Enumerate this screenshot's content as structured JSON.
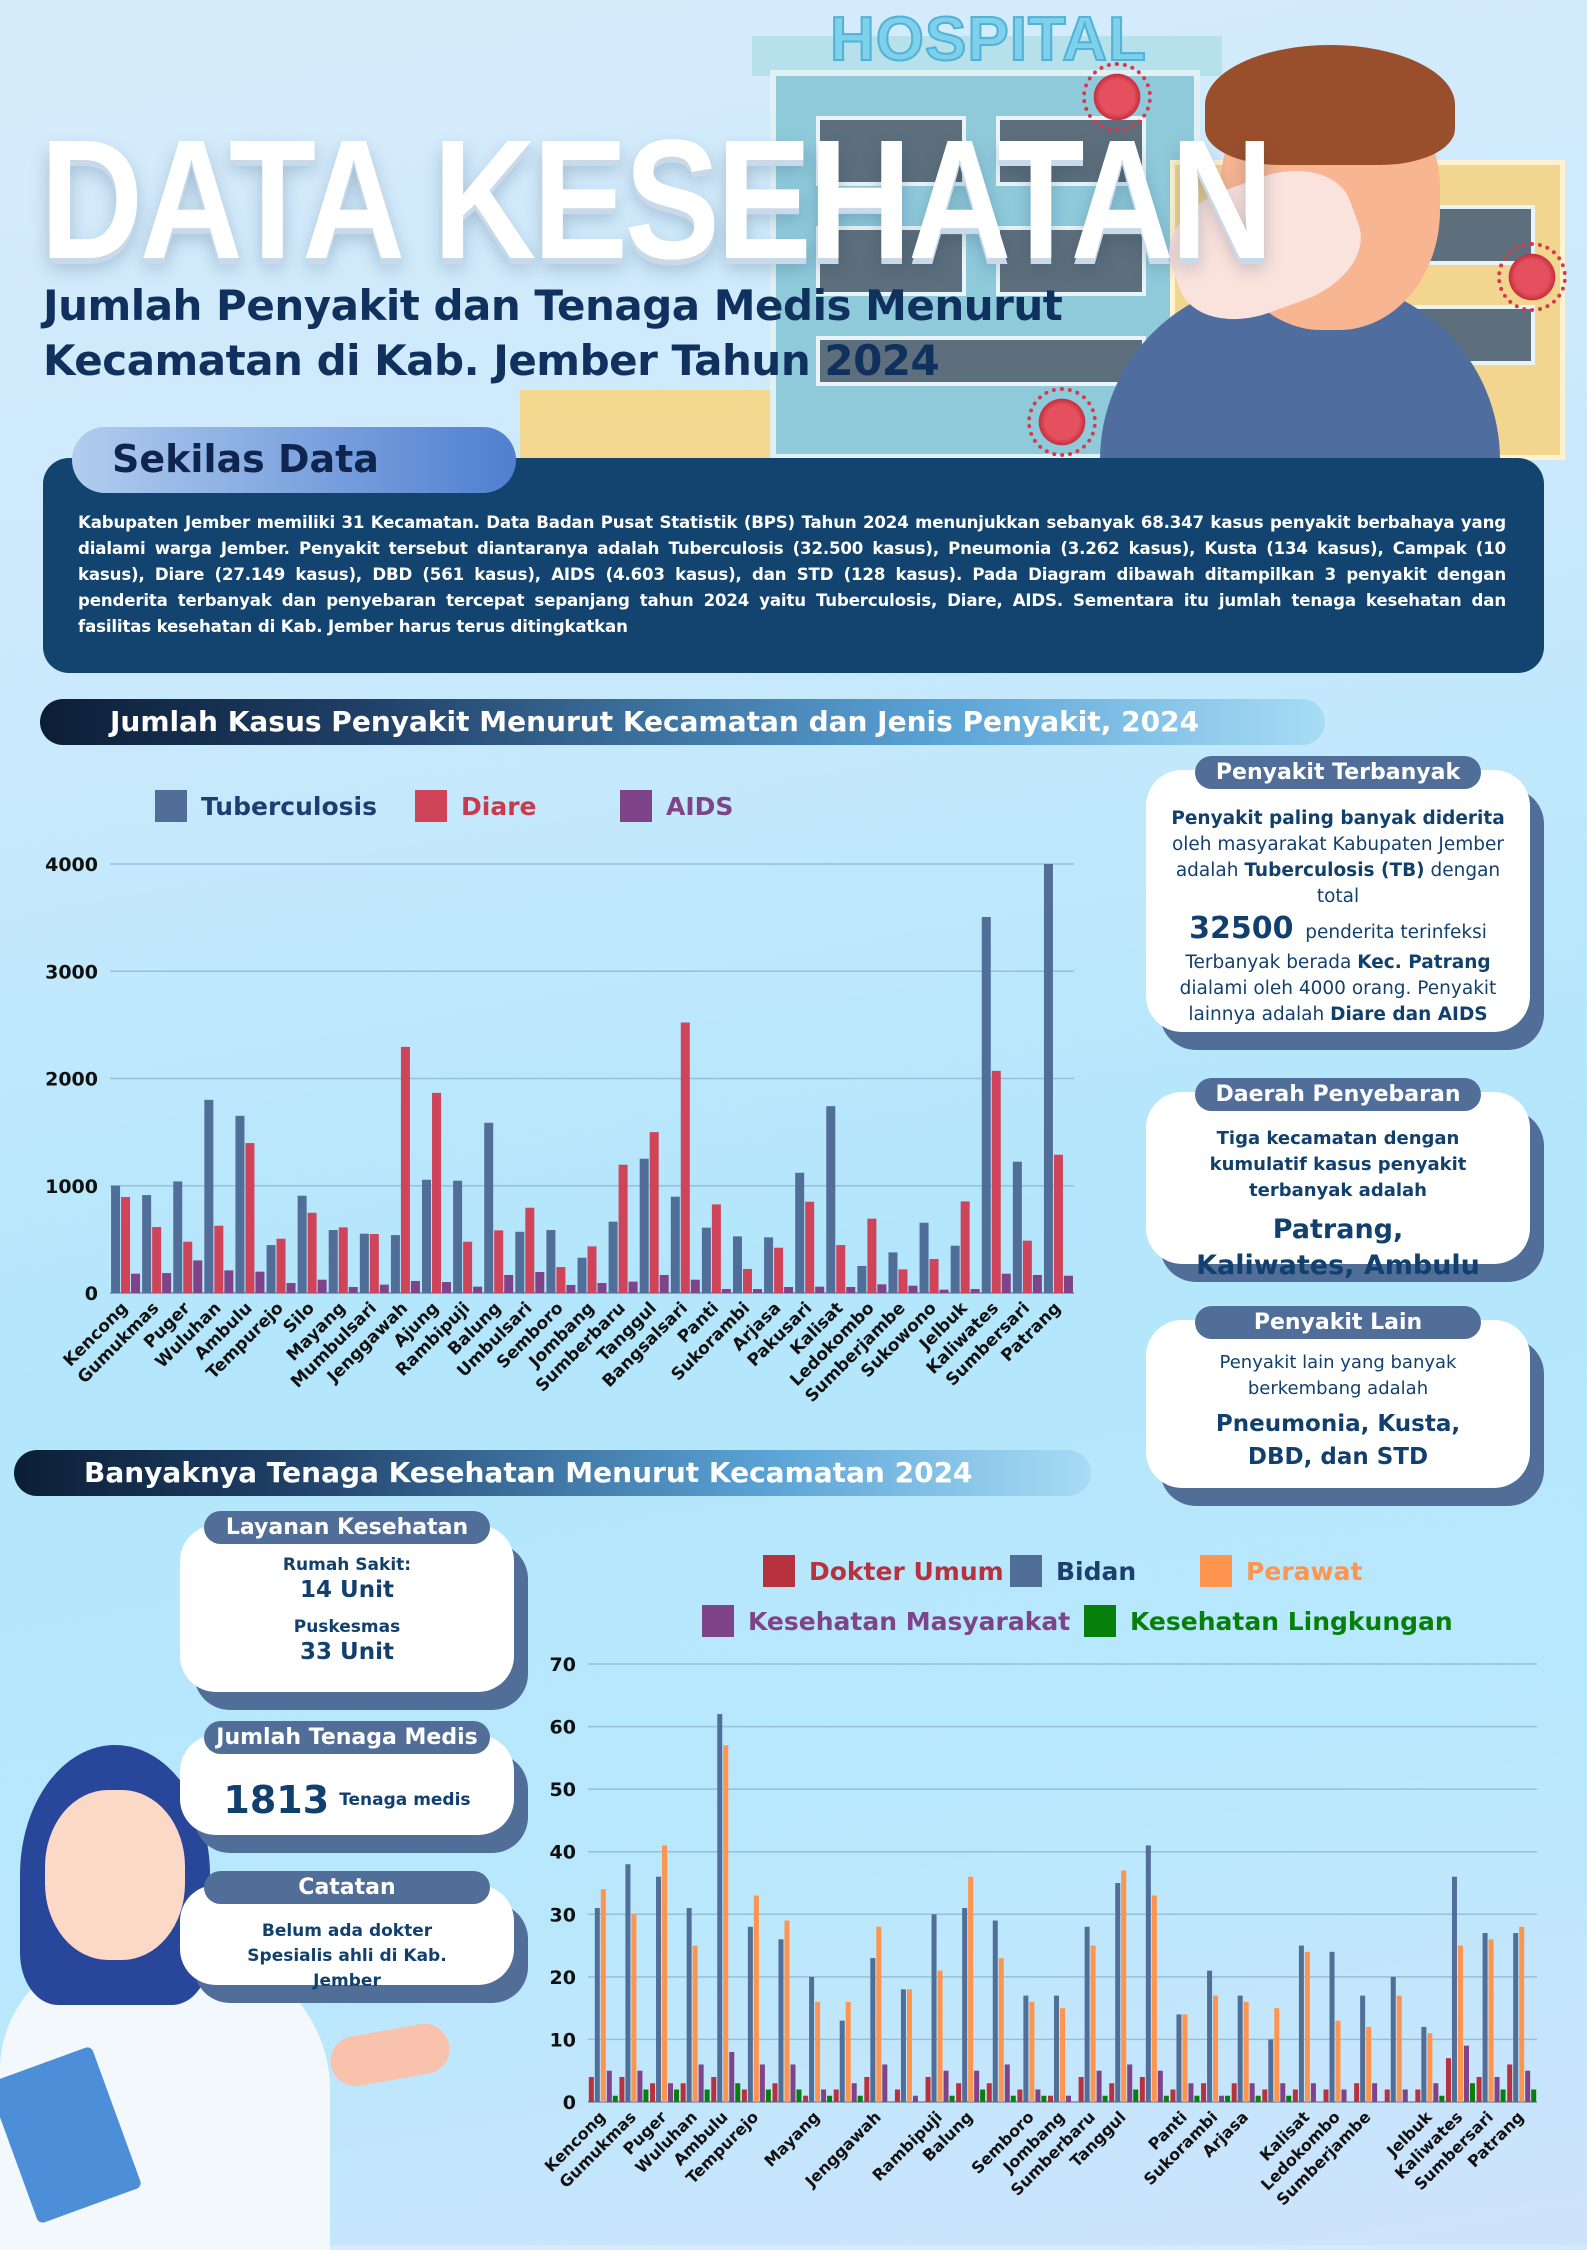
{
  "header": {
    "hospital_sign": "HOSPITAL",
    "title": "DATA KESEHATAN",
    "subtitle_line1": "Jumlah Penyakit dan Tenaga Medis Menurut",
    "subtitle_line2": "Kecamatan di Kab. Jember Tahun 2024"
  },
  "summary": {
    "label": "Sekilas Data",
    "text": "Kabupaten Jember memiliki  31 Kecamatan. Data Badan Pusat Statistik (BPS) Tahun 2024 menunjukkan sebanyak 68.347 kasus penyakit berbahaya yang dialami warga Jember. Penyakit tersebut diantaranya adalah Tuberculosis (32.500 kasus), Pneumonia (3.262 kasus), Kusta (134 kasus), Campak (10 kasus), Diare (27.149 kasus), DBD (561 kasus), AIDS (4.603 kasus), dan STD (128 kasus). Pada Diagram dibawah ditampilkan 3 penyakit dengan penderita terbanyak dan penyebaran tercepat sepanjang tahun 2024 yaitu Tuberculosis, Diare, AIDS. Sementara itu jumlah tenaga kesehatan dan fasilitas kesehatan di Kab. Jember harus terus ditingkatkan"
  },
  "section1": {
    "title": "Jumlah Kasus Penyakit Menurut Kecamatan dan Jenis Penyakit, 2024"
  },
  "section2": {
    "title": "Banyaknya Tenaga Kesehatan Menurut Kecamatan 2024"
  },
  "cards_right": {
    "terbanyak": {
      "tag": "Penyakit Terbanyak",
      "p1_bold": "Penyakit paling banyak diderita",
      "p1_rest": " oleh masyarakat Kabupaten Jember adalah ",
      "p1_bold2": "Tuberculosis (TB)",
      "p1_end": " dengan total",
      "number": "32500",
      "number_label": "penderita terinfeksi",
      "p2_start": "Terbanyak berada ",
      "p2_bold": "Kec. Patrang",
      "p2_rest": " dialami oleh 4000 orang. Penyakit lainnya adalah ",
      "p2_bold2": "Diare dan AIDS"
    },
    "penyebaran": {
      "tag": "Daerah Penyebaran",
      "text": "Tiga kecamatan dengan kumulatif kasus penyakit terbanyak adalah",
      "highlight": "Patrang, Kaliwates, Ambulu"
    },
    "lain": {
      "tag": "Penyakit Lain",
      "text": "Penyakit lain yang banyak berkembang adalah",
      "highlight": "Pneumonia, Kusta, DBD, dan STD"
    }
  },
  "cards_left": {
    "layanan": {
      "tag": "Layanan Kesehatan",
      "rs_label": "Rumah Sakit:",
      "rs_value": "14 Unit",
      "pk_label": "Puskesmas",
      "pk_value": "33 Unit"
    },
    "tenaga": {
      "tag": "Jumlah Tenaga Medis",
      "number": "1813",
      "label": "Tenaga medis"
    },
    "catatan": {
      "tag": "Catatan",
      "text": "Belum ada dokter Spesialis ahli di Kab. Jember"
    }
  },
  "chart_data": [
    {
      "type": "bar",
      "title": "Jumlah Kasus Penyakit Menurut Kecamatan dan Jenis Penyakit, 2024",
      "ylim": [
        0,
        4000
      ],
      "yticks": [
        0,
        1000,
        2000,
        3000,
        4000
      ],
      "grid": true,
      "legend": "top-left",
      "categories": [
        "Kencong",
        "Gumukmas",
        "Puger",
        "Wuluhan",
        "Ambulu",
        "Tempurejo",
        "Silo",
        "Mayang",
        "Mumbulsari",
        "Jenggawah",
        "Ajung",
        "Rambipuji",
        "Balung",
        "Umbulsari",
        "Semboro",
        "Jombang",
        "Sumberbaru",
        "Tanggul",
        "Bangsalsari",
        "Panti",
        "Sukorambi",
        "Arjasa",
        "Pakusari",
        "Kalisat",
        "Ledokombo",
        "Sumberjambe",
        "Sukowono",
        "Jelbuk",
        "Kaliwates",
        "Sumbersari",
        "Patrang"
      ],
      "series": [
        {
          "name": "Tuberculosis",
          "color": "#516e99",
          "values": [
            1000,
            913,
            1040,
            1801,
            1652,
            447,
            907,
            587,
            553,
            540,
            1056,
            1047,
            1587,
            571,
            587,
            329,
            665,
            1252,
            898,
            609,
            528,
            519,
            1121,
            1742,
            252,
            379,
            655,
            441,
            3506,
            1224,
            4000
          ]
        },
        {
          "name": "Diare",
          "color": "#d0445a",
          "values": [
            895,
            615,
            478,
            627,
            1398,
            506,
            748,
            612,
            550,
            2295,
            1866,
            478,
            584,
            795,
            242,
            435,
            1196,
            1500,
            2522,
            826,
            224,
            422,
            851,
            447,
            693,
            220,
            317,
            854,
            2071,
            488,
            1289
          ]
        },
        {
          "name": "AIDS",
          "color": "#7f4389",
          "values": [
            180,
            186,
            304,
            211,
            199,
            93,
            124,
            56,
            78,
            112,
            102,
            59,
            168,
            196,
            75,
            93,
            106,
            168,
            124,
            37,
            37,
            56,
            59,
            56,
            81,
            68,
            31,
            37,
            180,
            168,
            161
          ]
        }
      ]
    },
    {
      "type": "bar",
      "title": "Banyaknya Tenaga Kesehatan Menurut Kecamatan 2024",
      "ylim": [
        0,
        70
      ],
      "yticks": [
        0,
        10,
        20,
        30,
        40,
        50,
        60,
        70
      ],
      "grid": true,
      "legend": "top",
      "categories": [
        "Kencong",
        "Gumukmas",
        "Puger",
        "Wuluhan",
        "Ambulu",
        "Tempurejo",
        "Silo",
        "Mayang",
        "Mumbulsari",
        "Jenggawah",
        "Ajung",
        "Rambipuji",
        "Balung",
        "Umbulsari",
        "Semboro",
        "Jombang",
        "Sumberbaru",
        "Tanggul",
        "Bangsalsari",
        "Panti",
        "Sukorambi",
        "Arjasa",
        "Pakusari",
        "Kalisat",
        "Ledokombo",
        "Sumberjambe",
        "Sukowono",
        "Jelbuk",
        "Kaliwates",
        "Sumbersari",
        "Patrang"
      ],
      "shown_labels": [
        "Kencong",
        "Gumukmas",
        "Puger",
        "Wuluhan",
        "Ambulu",
        "Tempurejo",
        "Mayang",
        "Jenggawah",
        "Rambipuji",
        "Balung",
        "Semboro",
        "Jombang",
        "Sumberbaru",
        "Tanggul",
        "Panti",
        "Sukorambi",
        "Arjasa",
        "Kalisat",
        "Ledokombo",
        "Sumberjambe",
        "Jelbuk",
        "Kaliwates",
        "Sumbersari",
        "Patrang"
      ],
      "series": [
        {
          "name": "Dokter Umum",
          "color": "#b8313f",
          "values": [
            4,
            4,
            3,
            3,
            4,
            2,
            3,
            1,
            2,
            4,
            2,
            4,
            3,
            3,
            2,
            1,
            4,
            3,
            4,
            2,
            3,
            3,
            2,
            2,
            2,
            3,
            2,
            2,
            7,
            4,
            6
          ]
        },
        {
          "name": "Bidan",
          "color": "#516e99",
          "values": [
            31,
            38,
            36,
            31,
            62,
            28,
            26,
            20,
            13,
            23,
            18,
            30,
            31,
            29,
            17,
            17,
            28,
            35,
            41,
            14,
            21,
            17,
            10,
            25,
            24,
            17,
            20,
            12,
            36,
            27,
            27
          ]
        },
        {
          "name": "Perawat",
          "color": "#fe944e",
          "values": [
            34,
            30,
            41,
            25,
            57,
            33,
            29,
            16,
            16,
            28,
            18,
            21,
            36,
            23,
            16,
            15,
            25,
            37,
            33,
            14,
            17,
            16,
            15,
            24,
            13,
            12,
            17,
            11,
            25,
            26,
            28
          ]
        },
        {
          "name": "Kesehatan Masyarakat",
          "color": "#7f4389",
          "values": [
            5,
            5,
            3,
            6,
            8,
            6,
            6,
            2,
            3,
            6,
            1,
            5,
            5,
            6,
            2,
            1,
            5,
            6,
            5,
            3,
            1,
            3,
            3,
            3,
            2,
            3,
            2,
            3,
            9,
            4,
            5
          ]
        },
        {
          "name": "Kesehatan Lingkungan",
          "color": "#07800b",
          "values": [
            1,
            2,
            2,
            2,
            3,
            2,
            2,
            1,
            1,
            0,
            0,
            1,
            2,
            1,
            1,
            0,
            1,
            2,
            1,
            1,
            1,
            1,
            1,
            0,
            0,
            0,
            0,
            1,
            3,
            2,
            2
          ]
        }
      ]
    }
  ]
}
